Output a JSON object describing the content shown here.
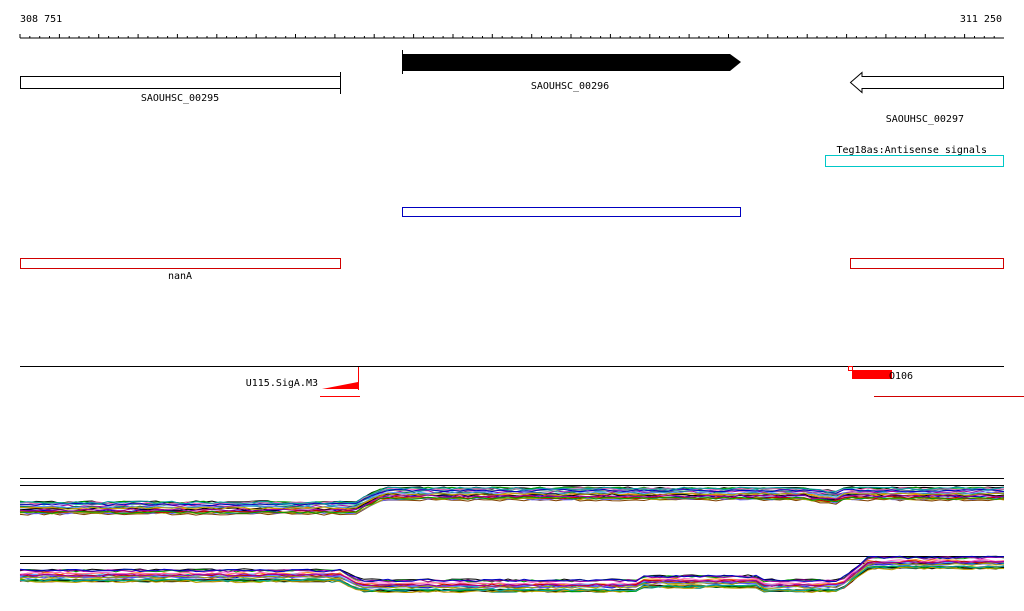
{
  "ruler": {
    "start_label": "308 751",
    "end_label": "311 250"
  },
  "genes": [
    {
      "name": "SAOUHSC_00295",
      "strand": "+",
      "style": "outline",
      "color": "#000000"
    },
    {
      "name": "SAOUHSC_00296",
      "strand": "+",
      "style": "filled",
      "color": "#000000"
    },
    {
      "name": "SAOUHSC_00297",
      "strand": "-",
      "style": "outline",
      "color": "#000000"
    }
  ],
  "annotations": {
    "antisense_label": "Teg18as:Antisense signals",
    "antisense_color": "#00c8c8",
    "cds_color": "#0000c0",
    "operon_label": "nanA",
    "operon_color": "#d00000"
  },
  "features": {
    "promoter_label": "U115.SigA.M3",
    "terminator_label": "O106",
    "feature_color": "#ff0000"
  },
  "tracks": {
    "line_colors": [
      "#000000",
      "#c00000",
      "#00a000",
      "#0000c0",
      "#c0a000",
      "#a000a0",
      "#00a0a0",
      "#808080",
      "#ff8000",
      "#804000",
      "#008060",
      "#ff60c0",
      "#6060ff",
      "#a0a000",
      "#60a0ff"
    ]
  }
}
